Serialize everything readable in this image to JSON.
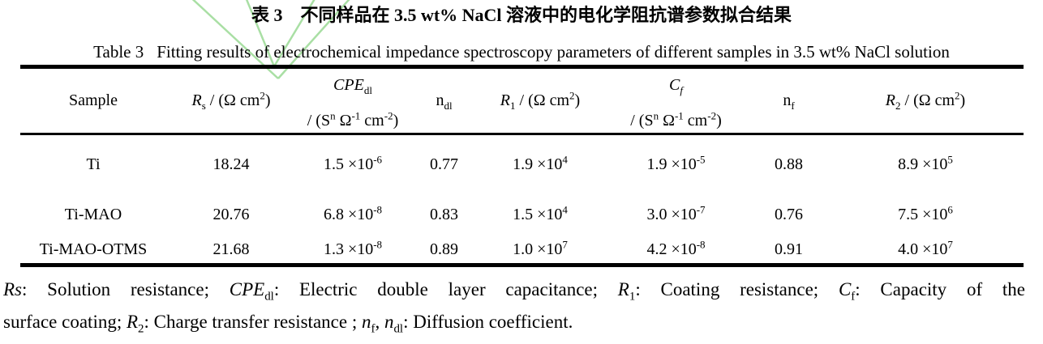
{
  "watermark": {
    "color": "#a0dc9a"
  },
  "caption": {
    "zh": "表 3　不同样品在 3.5 wt% NaCl 溶液中的电化学阻抗谱参数拟合结果",
    "en_label": "Table 3",
    "en_body": "Fitting results of electrochemical impedance spectroscopy parameters of different samples in 3.5 wt% NaCl solution"
  },
  "table": {
    "headers": [
      {
        "id": "sample",
        "segments": [
          {
            "t": "Sample"
          }
        ]
      },
      {
        "id": "rs",
        "segments": [
          {
            "t": "R",
            "f": "i"
          },
          {
            "t": "s",
            "f": "sub"
          },
          {
            "t": " / (Ω cm"
          },
          {
            "t": "2",
            "f": "sup"
          },
          {
            "t": ")"
          }
        ]
      },
      {
        "id": "cpe_dl",
        "line1": [
          {
            "t": "CPE",
            "f": "i"
          },
          {
            "t": "dl",
            "f": "sub"
          }
        ],
        "line2": [
          {
            "t": "/ (S"
          },
          {
            "t": "n",
            "f": "sup"
          },
          {
            "t": " Ω"
          },
          {
            "t": "-1",
            "f": "sup"
          },
          {
            "t": " cm"
          },
          {
            "t": "-2",
            "f": "sup"
          },
          {
            "t": ")"
          }
        ]
      },
      {
        "id": "n_dl",
        "segments": [
          {
            "t": "n"
          },
          {
            "t": "dl",
            "f": "sub"
          }
        ]
      },
      {
        "id": "r1",
        "segments": [
          {
            "t": "R",
            "f": "i"
          },
          {
            "t": "1",
            "f": "sub"
          },
          {
            "t": " / (Ω cm"
          },
          {
            "t": "2",
            "f": "sup"
          },
          {
            "t": ")"
          }
        ]
      },
      {
        "id": "cf",
        "line1": [
          {
            "t": "C",
            "f": "i"
          },
          {
            "t": "f",
            "f": "isub"
          }
        ],
        "line2": [
          {
            "t": "/ (S"
          },
          {
            "t": "n",
            "f": "sup"
          },
          {
            "t": " Ω"
          },
          {
            "t": "-1",
            "f": "sup"
          },
          {
            "t": " cm"
          },
          {
            "t": "-2",
            "f": "sup"
          },
          {
            "t": ")"
          }
        ]
      },
      {
        "id": "n_f",
        "segments": [
          {
            "t": "n"
          },
          {
            "t": "f",
            "f": "sub"
          }
        ]
      },
      {
        "id": "r2",
        "segments": [
          {
            "t": "R",
            "f": "i"
          },
          {
            "t": "2",
            "f": "sub"
          },
          {
            "t": " / (Ω cm"
          },
          {
            "t": "2",
            "f": "sup"
          },
          {
            "t": ")"
          }
        ]
      }
    ],
    "rows": [
      {
        "cells": [
          [
            {
              "t": "Ti"
            }
          ],
          [
            {
              "t": "18.24"
            }
          ],
          [
            {
              "t": "1.5 ×10"
            },
            {
              "t": "-6",
              "f": "sup"
            }
          ],
          [
            {
              "t": "0.77"
            }
          ],
          [
            {
              "t": "1.9 ×10"
            },
            {
              "t": "4",
              "f": "sup"
            }
          ],
          [
            {
              "t": "1.9 ×10"
            },
            {
              "t": "-5",
              "f": "sup"
            }
          ],
          [
            {
              "t": "0.88"
            }
          ],
          [
            {
              "t": "8.9 ×10"
            },
            {
              "t": "5",
              "f": "sup"
            }
          ]
        ]
      },
      {
        "cells": [
          [
            {
              "t": "Ti-MAO"
            }
          ],
          [
            {
              "t": "20.76"
            }
          ],
          [
            {
              "t": "6.8 ×10"
            },
            {
              "t": "-8",
              "f": "sup"
            }
          ],
          [
            {
              "t": "0.83"
            }
          ],
          [
            {
              "t": "1.5 ×10"
            },
            {
              "t": "4",
              "f": "sup"
            }
          ],
          [
            {
              "t": "3.0 ×10"
            },
            {
              "t": "-7",
              "f": "sup"
            }
          ],
          [
            {
              "t": "0.76"
            }
          ],
          [
            {
              "t": "7.5 ×10"
            },
            {
              "t": "6",
              "f": "sup"
            }
          ]
        ]
      },
      {
        "cells": [
          [
            {
              "t": "Ti-MAO-OTMS"
            }
          ],
          [
            {
              "t": "21.68"
            }
          ],
          [
            {
              "t": "1.3 ×10"
            },
            {
              "t": "-8",
              "f": "sup"
            }
          ],
          [
            {
              "t": "0.89"
            }
          ],
          [
            {
              "t": "1.0 ×10"
            },
            {
              "t": "7",
              "f": "sup"
            }
          ],
          [
            {
              "t": "4.2 ×10"
            },
            {
              "t": "-8",
              "f": "sup"
            }
          ],
          [
            {
              "t": "0.91"
            }
          ],
          [
            {
              "t": "4.0 ×10"
            },
            {
              "t": "7",
              "f": "sup"
            }
          ]
        ]
      }
    ]
  },
  "notes": {
    "line1": [
      {
        "t": "Rs",
        "f": "i"
      },
      {
        "t": ": Solution resistance; "
      },
      {
        "t": "CPE",
        "f": "i"
      },
      {
        "t": "dl",
        "f": "sub"
      },
      {
        "t": ": Electric double layer capacitance; "
      },
      {
        "t": "R",
        "f": "i"
      },
      {
        "t": "1",
        "f": "sub"
      },
      {
        "t": ": Coating resistance; "
      },
      {
        "t": "C",
        "f": "i"
      },
      {
        "t": "f",
        "f": "sub"
      },
      {
        "t": ": Capacity of the"
      }
    ],
    "line2": [
      {
        "t": "surface coating; "
      },
      {
        "t": "R",
        "f": "i"
      },
      {
        "t": "2",
        "f": "sub"
      },
      {
        "t": ": Charge transfer resistance ; "
      },
      {
        "t": "n",
        "f": "i"
      },
      {
        "t": "f",
        "f": "sub"
      },
      {
        "t": ", "
      },
      {
        "t": "n",
        "f": "i"
      },
      {
        "t": "dl",
        "f": "sub"
      },
      {
        "t": ": Diffusion coefficient."
      }
    ]
  }
}
